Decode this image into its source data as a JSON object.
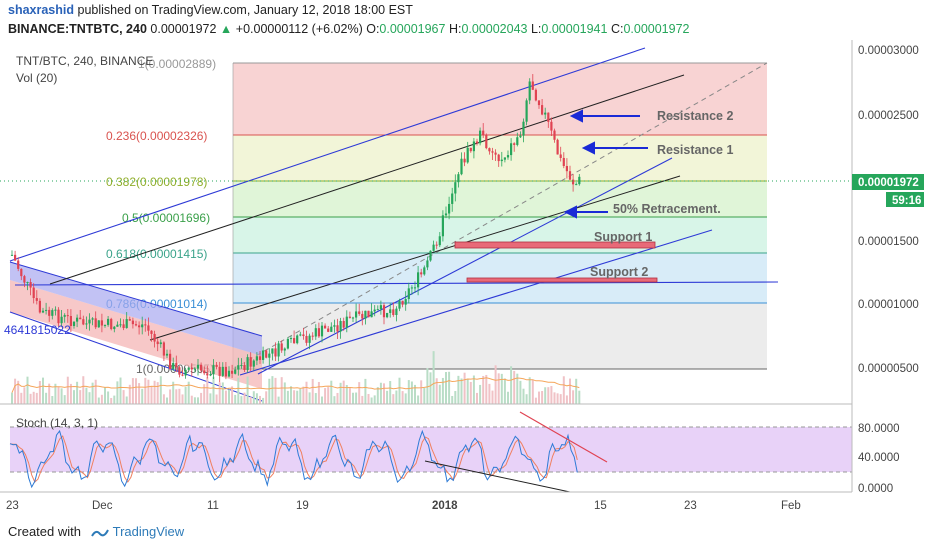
{
  "header": {
    "author": "shaxrashid",
    "published_text": "published on TradingView.com, January 12, 2018 18:00 EST",
    "symbol": "BINANCE:TNTBTC, 240",
    "last": "0.00001972",
    "change_arrow": "▲",
    "change": "+0.00000112 (+6.02%)",
    "o_label": "O:",
    "o_value": "0.00001967",
    "h_label": "H:",
    "h_value": "0.00002043",
    "l_label": "L:",
    "l_value": "0.00001941",
    "c_label": "C:",
    "c_value": "0.00001972"
  },
  "pane_labels": {
    "symbol": "TNT/BTC, 240, BINANCE",
    "volume": "Vol (20)",
    "stoch": "Stoch (14, 3, 1)"
  },
  "price_badge": {
    "value": "0.00001972",
    "countdown": "59:16"
  },
  "footer": {
    "created_with": "Created with",
    "brand": "TradingView"
  },
  "colors": {
    "up": "#26a65b",
    "down": "#e04352",
    "channel": "#2e3ad6",
    "price_badge": "#26a65b",
    "stoch_k": "#2e7bd6",
    "stoch_d": "#f08060",
    "stoch_band": "#e8d2f8"
  },
  "chart_data": {
    "type": "candlestick",
    "pair": "TNT/BTC",
    "interval": "240",
    "exchange": "BINANCE",
    "x_ticks": [
      "23",
      "Dec",
      "11",
      "19",
      "2018",
      "15",
      "23",
      "Feb"
    ],
    "y_ticks": [
      "0.00003000",
      "0.00002500",
      "0.00001500",
      "0.00001000",
      "0.00000500"
    ],
    "ylim": [
      2e-06,
      3.15e-05
    ],
    "last_price": 1.972e-05,
    "fib_levels": [
      {
        "label": "0.236(0.00002326)",
        "ratio": 0.236,
        "price": 2.326e-05,
        "color": "#d9534f"
      },
      {
        "label": "0.382(0.00001978)",
        "ratio": 0.382,
        "price": 1.978e-05,
        "color": "#8fae2b"
      },
      {
        "label": "0.5(0.00001696)",
        "ratio": 0.5,
        "price": 1.696e-05,
        "color": "#3aa04a"
      },
      {
        "label": "0.618(0.00001415)",
        "ratio": 0.618,
        "price": 1.415e-05,
        "color": "#3aa38a"
      },
      {
        "label": "0.786(0.00001014)",
        "ratio": 0.786,
        "price": 1.014e-05,
        "color": "#3a8fd6"
      }
    ],
    "fib_top_label": "1(0.00002889)",
    "fib_top": 2.889e-05,
    "fib_bottom_label": "1(0.00000505)",
    "fib_bottom": 5.05e-06,
    "annotations": [
      "Resistance 2",
      "Resistance 1",
      "50% Retracement.",
      "Support 1",
      "Support 2"
    ],
    "left_edge_value": "4641815022",
    "stoch": {
      "name": "Stoch (14, 3, 1)",
      "y_ticks": [
        "80.0000",
        "40.0000",
        "0.0000"
      ],
      "ylim": [
        -10,
        100
      ],
      "bands": [
        80,
        20
      ]
    }
  }
}
